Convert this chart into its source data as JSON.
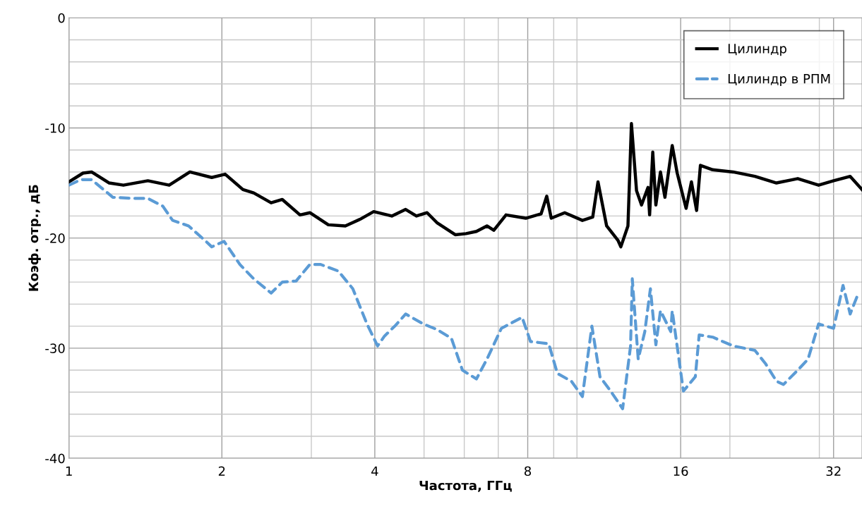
{
  "chart_data": {
    "type": "line",
    "xlabel": "Частота, ГГц",
    "ylabel": "Коэф. отр., дБ",
    "log": "x",
    "grid": true,
    "legend": "top right",
    "xlim": [
      1,
      36.4
    ],
    "xticks": [
      1,
      2,
      4,
      8,
      16,
      32
    ],
    "ylim": [
      -40,
      0
    ],
    "yticks": [
      0,
      -10,
      -20,
      -30,
      -40
    ],
    "series": [
      {
        "name": "Цилиндр",
        "color": "#000000",
        "line_style": "solid",
        "x": [
          1.0,
          1.066,
          1.108,
          1.2,
          1.28,
          1.43,
          1.575,
          1.73,
          1.91,
          2.03,
          2.2,
          2.31,
          2.5,
          2.63,
          2.85,
          2.98,
          3.24,
          3.5,
          3.74,
          3.98,
          4.32,
          4.6,
          4.83,
          5.07,
          5.3,
          5.76,
          6.05,
          6.34,
          6.65,
          6.86,
          7.25,
          7.93,
          8.5,
          8.72,
          8.9,
          9.46,
          10.25,
          10.74,
          11.0,
          11.44,
          12.04,
          12.2,
          12.6,
          12.8,
          13.1,
          13.4,
          13.8,
          13.9,
          14.1,
          14.3,
          14.6,
          14.9,
          15.4,
          15.75,
          16.4,
          16.8,
          17.2,
          17.5,
          18.5,
          20.3,
          22.4,
          24.7,
          27.2,
          29.9,
          32.0,
          34.5,
          36.4
        ],
        "values": [
          -14.9,
          -14.1,
          -14.0,
          -15.0,
          -15.2,
          -14.8,
          -15.2,
          -14.0,
          -14.5,
          -14.2,
          -15.6,
          -15.9,
          -16.8,
          -16.5,
          -17.9,
          -17.7,
          -18.8,
          -18.9,
          -18.3,
          -17.6,
          -18.0,
          -17.4,
          -18.0,
          -17.7,
          -18.6,
          -19.7,
          -19.6,
          -19.4,
          -18.9,
          -19.3,
          -17.9,
          -18.2,
          -17.8,
          -16.2,
          -18.2,
          -17.7,
          -18.4,
          -18.1,
          -14.9,
          -18.9,
          -20.2,
          -20.8,
          -18.9,
          -9.6,
          -15.7,
          -17.0,
          -15.4,
          -17.9,
          -12.2,
          -17.0,
          -14.0,
          -16.3,
          -11.6,
          -14.1,
          -17.3,
          -14.9,
          -17.5,
          -13.4,
          -13.8,
          -14.0,
          -14.4,
          -15.0,
          -14.6,
          -15.2,
          -14.8,
          -14.4,
          -15.6
        ]
      },
      {
        "name": "Цилиндр в РПМ",
        "color": "#5b9bd5",
        "line_style": "dashed",
        "x": [
          1.0,
          1.055,
          1.108,
          1.22,
          1.34,
          1.43,
          1.53,
          1.6,
          1.72,
          1.85,
          1.91,
          2.02,
          2.17,
          2.31,
          2.5,
          2.63,
          2.8,
          2.98,
          3.13,
          3.39,
          3.62,
          3.86,
          4.05,
          4.18,
          4.38,
          4.6,
          4.98,
          5.3,
          5.66,
          5.95,
          6.34,
          6.65,
          7.1,
          7.8,
          8.1,
          8.8,
          9.15,
          9.75,
          10.25,
          10.7,
          11.1,
          11.65,
          12.3,
          12.75,
          12.85,
          13.2,
          13.6,
          13.95,
          14.3,
          14.6,
          15.3,
          15.4,
          16.2,
          17.1,
          17.4,
          18.5,
          20.3,
          22.4,
          23.5,
          24.7,
          25.5,
          27.2,
          28.5,
          29.9,
          32.0,
          33.4,
          34.5,
          35.6
        ],
        "values": [
          -15.2,
          -14.7,
          -14.7,
          -16.3,
          -16.4,
          -16.4,
          -17.1,
          -18.4,
          -18.9,
          -20.2,
          -20.8,
          -20.3,
          -22.4,
          -23.7,
          -25.0,
          -24.0,
          -23.9,
          -22.4,
          -22.4,
          -23.0,
          -24.6,
          -27.8,
          -29.8,
          -28.9,
          -28.0,
          -26.9,
          -27.8,
          -28.3,
          -29.1,
          -32.0,
          -32.8,
          -31.0,
          -28.2,
          -27.2,
          -29.4,
          -29.6,
          -32.3,
          -33.0,
          -34.4,
          -28.0,
          -32.6,
          -33.9,
          -35.5,
          -29.8,
          -23.7,
          -31.0,
          -28.5,
          -24.6,
          -29.7,
          -26.6,
          -28.5,
          -26.6,
          -33.9,
          -32.6,
          -28.8,
          -29.0,
          -29.8,
          -30.2,
          -31.4,
          -33.0,
          -33.3,
          -32.0,
          -31.0,
          -27.8,
          -28.2,
          -24.3,
          -26.9,
          -25.3
        ]
      }
    ]
  }
}
